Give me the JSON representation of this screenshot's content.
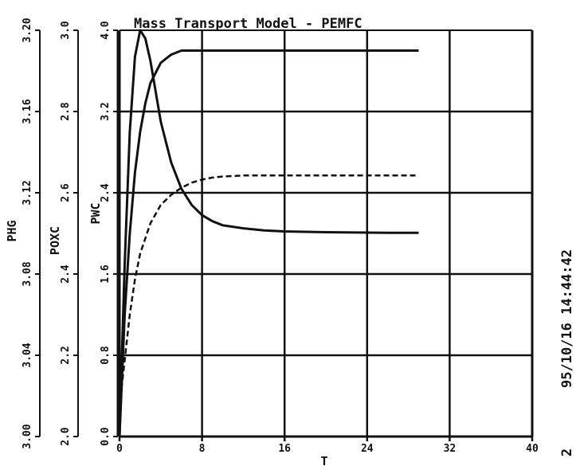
{
  "chart_data": {
    "type": "line",
    "title": "Mass Transport Model - PEMFC",
    "xlabel": "T",
    "xlim": [
      0,
      40
    ],
    "xticks": [
      "0",
      "8",
      "16",
      "24",
      "32",
      "40"
    ],
    "grid": true,
    "y_axes": [
      {
        "label": "PHG",
        "ylim": [
          3.0,
          3.2
        ],
        "ticks": [
          "3.00",
          "3.04",
          "3.08",
          "3.12",
          "3.16",
          "3.20"
        ]
      },
      {
        "label": "POXC",
        "ylim": [
          2.0,
          3.0
        ],
        "ticks": [
          "2.0",
          "2.2",
          "2.4",
          "2.6",
          "2.8",
          "3.0"
        ]
      },
      {
        "label": "PWC",
        "ylim": [
          0.0,
          4.0
        ],
        "ticks": [
          "0.0",
          "0.8",
          "1.6",
          "2.4",
          "3.2",
          "4.0"
        ]
      }
    ],
    "series": [
      {
        "axis": 0,
        "style": "solid",
        "x": [
          0,
          0.5,
          1,
          1.5,
          2,
          2.5,
          3,
          3.5,
          4,
          5,
          6,
          7,
          8,
          9,
          10,
          12,
          14,
          16,
          18,
          20,
          22,
          24,
          26,
          28,
          29
        ],
        "y": [
          3.0,
          3.085,
          3.15,
          3.187,
          3.2,
          3.196,
          3.185,
          3.17,
          3.155,
          3.135,
          3.122,
          3.114,
          3.109,
          3.106,
          3.104,
          3.1025,
          3.1015,
          3.101,
          3.1008,
          3.1006,
          3.1005,
          3.1004,
          3.1003,
          3.1003,
          3.1003
        ]
      },
      {
        "axis": 1,
        "style": "solid",
        "x": [
          0,
          0.5,
          1,
          1.5,
          2,
          2.5,
          3,
          4,
          5,
          6,
          7,
          8,
          10,
          12,
          16,
          20,
          24,
          28,
          29
        ],
        "y": [
          2.0,
          2.3,
          2.5,
          2.65,
          2.75,
          2.82,
          2.87,
          2.92,
          2.94,
          2.95,
          2.95,
          2.95,
          2.95,
          2.95,
          2.95,
          2.95,
          2.95,
          2.95,
          2.95
        ]
      },
      {
        "axis": 2,
        "style": "dashed",
        "x": [
          0,
          0.5,
          1,
          1.5,
          2,
          3,
          4,
          5,
          6,
          7,
          8,
          9,
          10,
          12,
          14,
          16,
          20,
          24,
          28,
          29
        ],
        "y": [
          0.3,
          0.75,
          1.2,
          1.55,
          1.8,
          2.1,
          2.28,
          2.38,
          2.45,
          2.5,
          2.53,
          2.55,
          2.56,
          2.57,
          2.57,
          2.57,
          2.57,
          2.57,
          2.57,
          2.57
        ]
      }
    ]
  },
  "stamp": {
    "timestamp": "95/10/16 14:44:42",
    "page_number": "2"
  }
}
